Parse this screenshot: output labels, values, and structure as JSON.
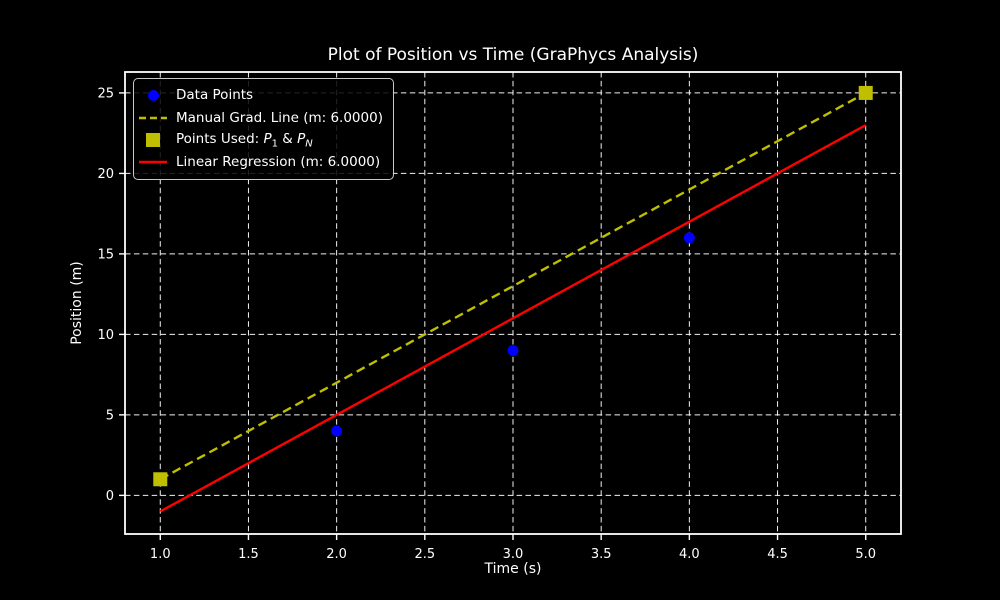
{
  "figure": {
    "background": "#000000",
    "text_color": "#ffffff",
    "grid_color": "#ffffff",
    "spine_color": "#ffffff"
  },
  "chart_data": {
    "type": "scatter",
    "title": "Plot of Position vs Time (GraPhycs Analysis)",
    "xlabel": "Time (s)",
    "ylabel": "Position (m)",
    "xlim": [
      0.8,
      5.2
    ],
    "ylim": [
      -2.4,
      26.3
    ],
    "xticks": [
      1.0,
      1.5,
      2.0,
      2.5,
      3.0,
      3.5,
      4.0,
      4.5,
      5.0
    ],
    "xtick_labels": [
      "1.0",
      "1.5",
      "2.0",
      "2.5",
      "3.0",
      "3.5",
      "4.0",
      "4.5",
      "5.0"
    ],
    "yticks": [
      0,
      5,
      10,
      15,
      20,
      25
    ],
    "ytick_labels": [
      "0",
      "5",
      "10",
      "15",
      "20",
      "25"
    ],
    "grid": true,
    "grid_style": "dashed",
    "legend_position": "upper-left",
    "series": [
      {
        "name": "Data Points",
        "kind": "scatter",
        "marker": "circle",
        "color": "#0000ff",
        "x": [
          2,
          3,
          4
        ],
        "y": [
          4,
          9,
          16
        ]
      },
      {
        "name": "Manual Grad. Line (m: 6.0000)",
        "kind": "line",
        "line_style": "dashed",
        "color": "#bfbf00",
        "x": [
          1,
          5
        ],
        "y": [
          1,
          25
        ]
      },
      {
        "name": "Points Used: P_1 & P_N",
        "kind": "scatter",
        "marker": "square",
        "color": "#bfbf00",
        "x": [
          1,
          5
        ],
        "y": [
          1,
          25
        ]
      },
      {
        "name": "Linear Regression (m: 6.0000)",
        "kind": "line",
        "line_style": "solid",
        "color": "#ff0000",
        "x": [
          1,
          5
        ],
        "y": [
          -1,
          23
        ]
      }
    ],
    "legend": {
      "items": [
        {
          "handle": "circle",
          "color": "#0000ff",
          "segments": [
            {
              "t": "Data Points"
            }
          ]
        },
        {
          "handle": "dashed-line",
          "color": "#bfbf00",
          "segments": [
            {
              "t": "Manual Grad. Line (m: 6.0000)"
            }
          ]
        },
        {
          "handle": "square",
          "color": "#bfbf00",
          "segments": [
            {
              "t": "Points Used: "
            },
            {
              "t": "P",
              "i": true
            },
            {
              "t": "1",
              "sub": true
            },
            {
              "t": " & "
            },
            {
              "t": "P",
              "i": true
            },
            {
              "t": "N",
              "sub": true,
              "i": true
            }
          ]
        },
        {
          "handle": "solid-line",
          "color": "#ff0000",
          "segments": [
            {
              "t": "Linear Regression (m: 6.0000)"
            }
          ]
        }
      ]
    }
  }
}
